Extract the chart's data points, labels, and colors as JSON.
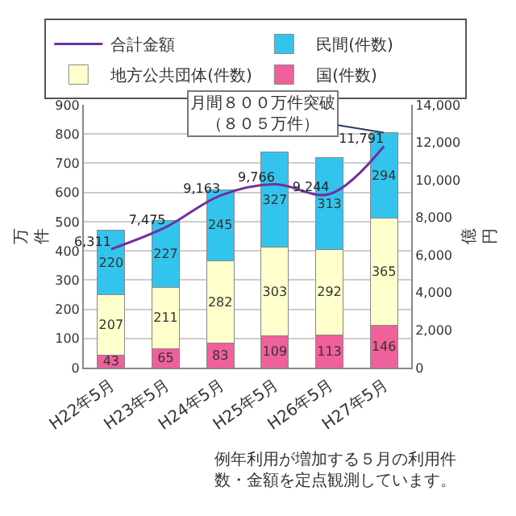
{
  "chart_data": {
    "type": "bar",
    "stacked": true,
    "ylabel": "万件",
    "y2label": "億円",
    "categories": [
      "H22年5月",
      "H23年5月",
      "H24年5月",
      "H25年5月",
      "H26年5月",
      "H27年5月"
    ],
    "series": [
      {
        "name": "国(件数)",
        "color": "#f0609a",
        "values": [
          43,
          65,
          83,
          109,
          113,
          146
        ]
      },
      {
        "name": "地方公共団体(件数)",
        "color": "#ffffcc",
        "values": [
          207,
          211,
          282,
          303,
          292,
          365
        ]
      },
      {
        "name": "民間(件数)",
        "color": "#33c4ee",
        "values": [
          220,
          227,
          245,
          327,
          313,
          294
        ]
      },
      {
        "name": "合計金額",
        "type": "line",
        "axis": "y2",
        "color": "#7030a0",
        "marker": "none",
        "values": [
          6311,
          7475,
          9163,
          9766,
          9244,
          11791
        ],
        "value_labels": [
          "6,311",
          "7,475",
          "9,163",
          "9,766",
          "9,244",
          "11,791"
        ]
      }
    ],
    "data_labels": true,
    "ylim": [
      0,
      900
    ],
    "yticks": [
      0,
      100,
      200,
      300,
      400,
      500,
      600,
      700,
      800,
      900
    ],
    "y2lim": [
      0,
      14000
    ],
    "y2ticks": [
      {
        "value": 0,
        "label": "0"
      },
      {
        "value": 2000,
        "label": "2,000"
      },
      {
        "value": 4000,
        "label": "4,000"
      },
      {
        "value": 6000,
        "label": "6,000"
      },
      {
        "value": 8000,
        "label": "8,000"
      },
      {
        "value": 10000,
        "label": "10,000"
      },
      {
        "value": 12000,
        "label": "12,000"
      },
      {
        "value": 14000,
        "label": "14,000"
      }
    ],
    "grid": "y",
    "legend": "top left",
    "annotations": [
      {
        "text": "月間８００万件突破（８０５万件）",
        "x": "H27年5月",
        "y": 805
      },
      "例年利用が増加する５月の利用件数・金額を定点観測しています。"
    ]
  }
}
